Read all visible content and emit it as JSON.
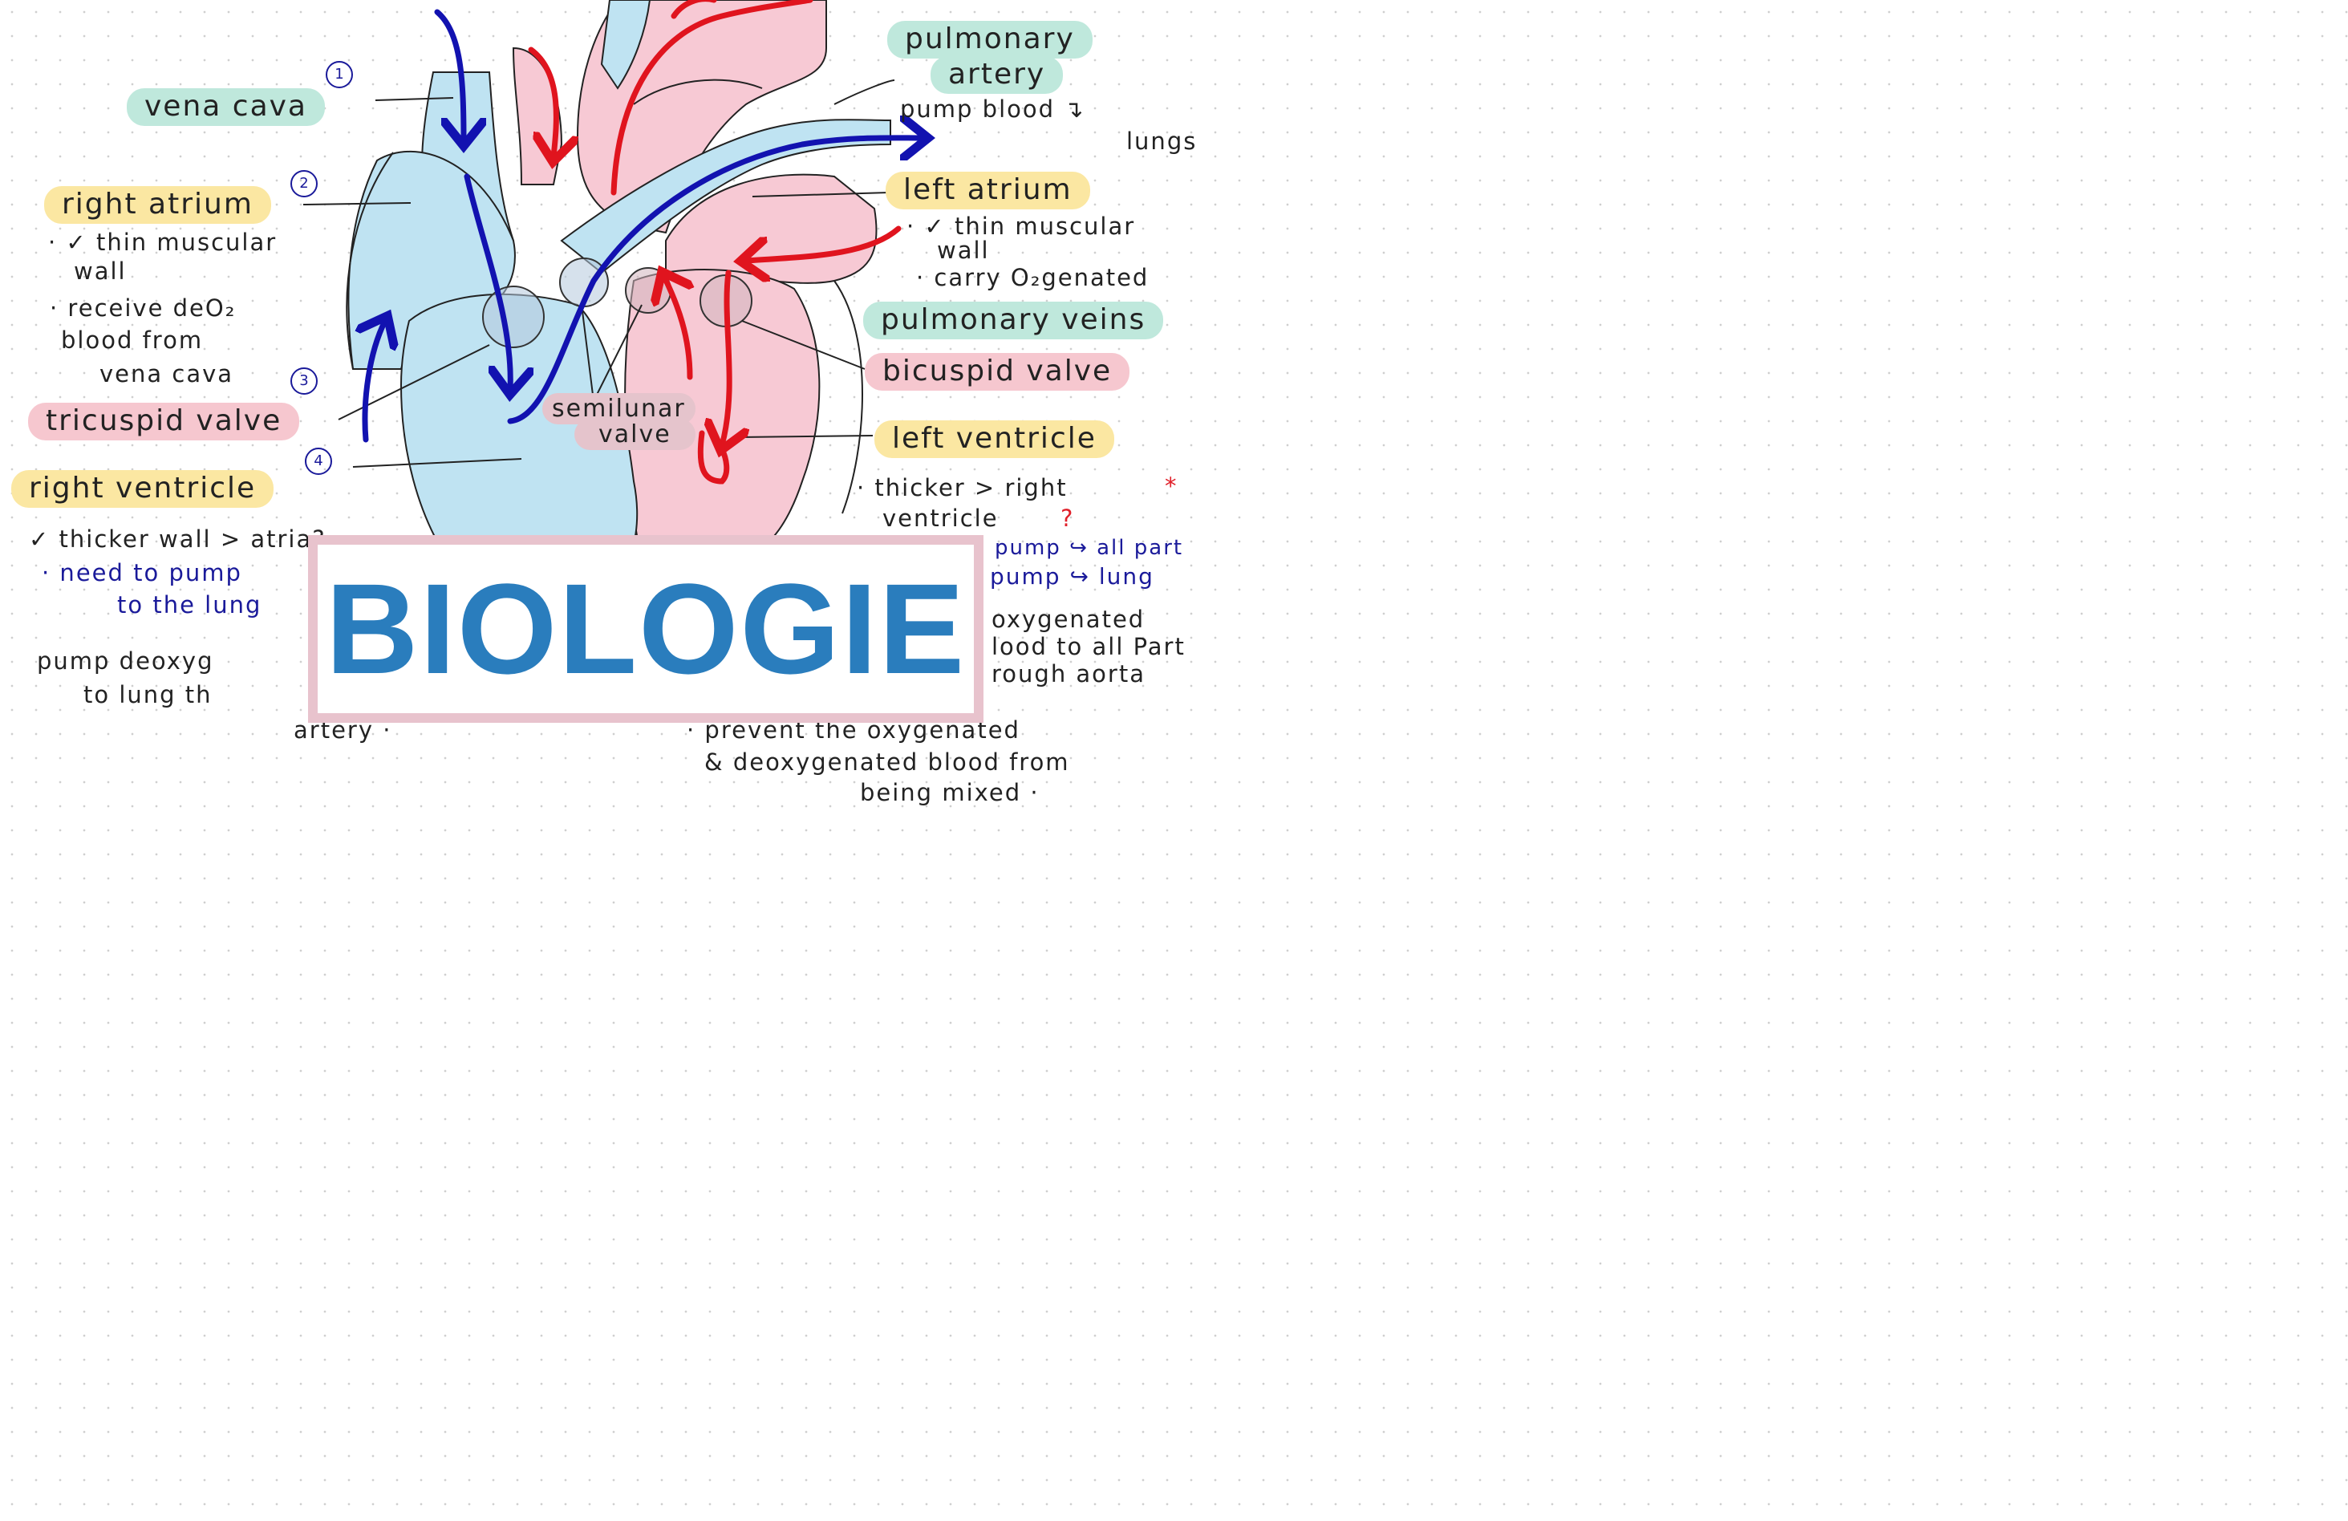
{
  "title": "BIOLOGIE",
  "markers": [
    "1",
    "2",
    "3",
    "4"
  ],
  "labels": {
    "vena_cava": "vena cava",
    "right_atrium": "right atrium",
    "tricuspid_valve": "tricuspid valve",
    "right_ventricle": "right   ventricle",
    "pulmonary_artery_line1": "pulmonary",
    "pulmonary_artery_line2": "artery",
    "left_atrium": "left atrium",
    "pulmonary_veins": "pulmonary veins",
    "bicuspid_valve": "bicuspid valve",
    "left_ventricle": "left ventricle",
    "semilunar_line1": "semilunar",
    "semilunar_line2": "valve"
  },
  "notes": {
    "pulmonary_artery": [
      "pump blood ↴",
      "lungs"
    ],
    "right_atrium": [
      "· ✓ thin muscular",
      "wall",
      "· receive deO₂",
      "blood from",
      "vena cava"
    ],
    "left_atrium": [
      "· ✓ thin muscular",
      "wall",
      "· carry O₂genated"
    ],
    "right_ventricle": [
      "✓ thicker wall > atria?",
      "· need to pump",
      "to the lung",
      "pump deoxyg",
      "to lung th",
      "artery ·"
    ],
    "left_ventricle": [
      "· thicker > right",
      "*",
      "ventricle",
      "?",
      "pump ↪ all part",
      "pump ↪ lung",
      "oxygenated",
      "lood to all Part",
      "rough aorta"
    ],
    "septum": [
      "· prevent the oxygenated",
      "& deoxygenated blood from",
      "being mixed ·"
    ]
  },
  "colors": {
    "deoxygenated_blood": "#bfe3f2",
    "oxygenated_blood": "#f7c9d4",
    "blue_arrow": "#1212b0",
    "red_arrow": "#e0141e",
    "title": "#2a7dbd",
    "title_border": "#e8c3cd"
  }
}
